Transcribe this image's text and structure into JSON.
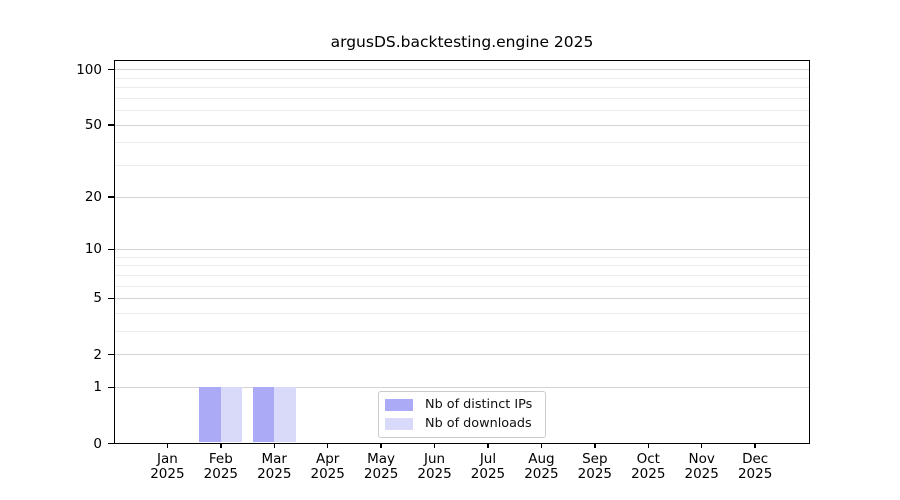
{
  "chart_data": {
    "type": "bar",
    "title": "argusDS.backtesting.engine 2025",
    "categories": [
      "Jan 2025",
      "Feb 2025",
      "Mar 2025",
      "Apr 2025",
      "May 2025",
      "Jun 2025",
      "Jul 2025",
      "Aug 2025",
      "Sep 2025",
      "Oct 2025",
      "Nov 2025",
      "Dec 2025"
    ],
    "series": [
      {
        "name": "Nb of distinct IPs",
        "key": "distinct-ips",
        "color": "#aaaaf6",
        "values": [
          0,
          1,
          1,
          0,
          0,
          0,
          0,
          0,
          0,
          0,
          0,
          0
        ]
      },
      {
        "name": "Nb of downloads",
        "key": "downloads",
        "color": "#d9d9f9",
        "values": [
          0,
          1,
          1,
          0,
          0,
          0,
          0,
          0,
          0,
          0,
          0,
          0
        ]
      }
    ],
    "xlabel": "",
    "ylabel": "",
    "yscale": "log1p",
    "ylim": [
      0,
      113
    ],
    "y_major_ticks": [
      0,
      1,
      2,
      5,
      10,
      20,
      50,
      100
    ],
    "y_minor_ticks": [
      3,
      4,
      6,
      7,
      8,
      9,
      30,
      40,
      60,
      70,
      80,
      90
    ],
    "grid": "on",
    "legend_position": "lower center",
    "colors": {
      "grid_major": "#d3d3d3",
      "grid_minor": "#ebebeb",
      "axis": "#000000",
      "text": "#000000",
      "background": "#ffffff"
    }
  }
}
